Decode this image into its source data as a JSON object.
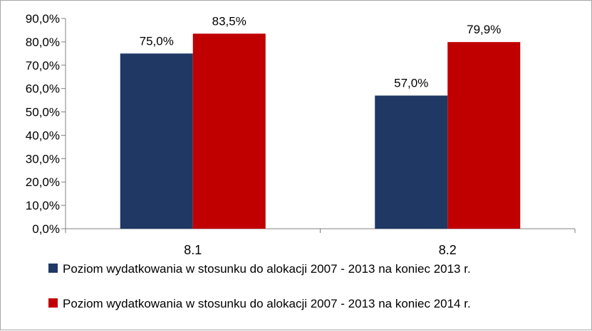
{
  "chart_data": {
    "type": "bar",
    "categories": [
      "8.1",
      "8.2"
    ],
    "series": [
      {
        "name": "Poziom wydatkowania w stosunku do alokacji 2007 - 2013 na koniec 2013 r.",
        "values": [
          75.0,
          57.0
        ],
        "labels": [
          "75,0%",
          "57,0%"
        ],
        "color": "#1f3864"
      },
      {
        "name": "Poziom wydatkowania w stosunku do alokacji 2007 - 2013 na koniec 2014 r.",
        "values": [
          83.5,
          79.9
        ],
        "labels": [
          "83,5%",
          "79,9%"
        ],
        "color": "#c00000"
      }
    ],
    "ylim": [
      0,
      90
    ],
    "yticks": [
      0,
      10,
      20,
      30,
      40,
      50,
      60,
      70,
      80,
      90
    ],
    "ytick_labels": [
      "0,0%",
      "10,0%",
      "20,0%",
      "30,0%",
      "40,0%",
      "50,0%",
      "60,0%",
      "70,0%",
      "80,0%",
      "90,0%"
    ],
    "grid": false,
    "legend": "bottom"
  }
}
